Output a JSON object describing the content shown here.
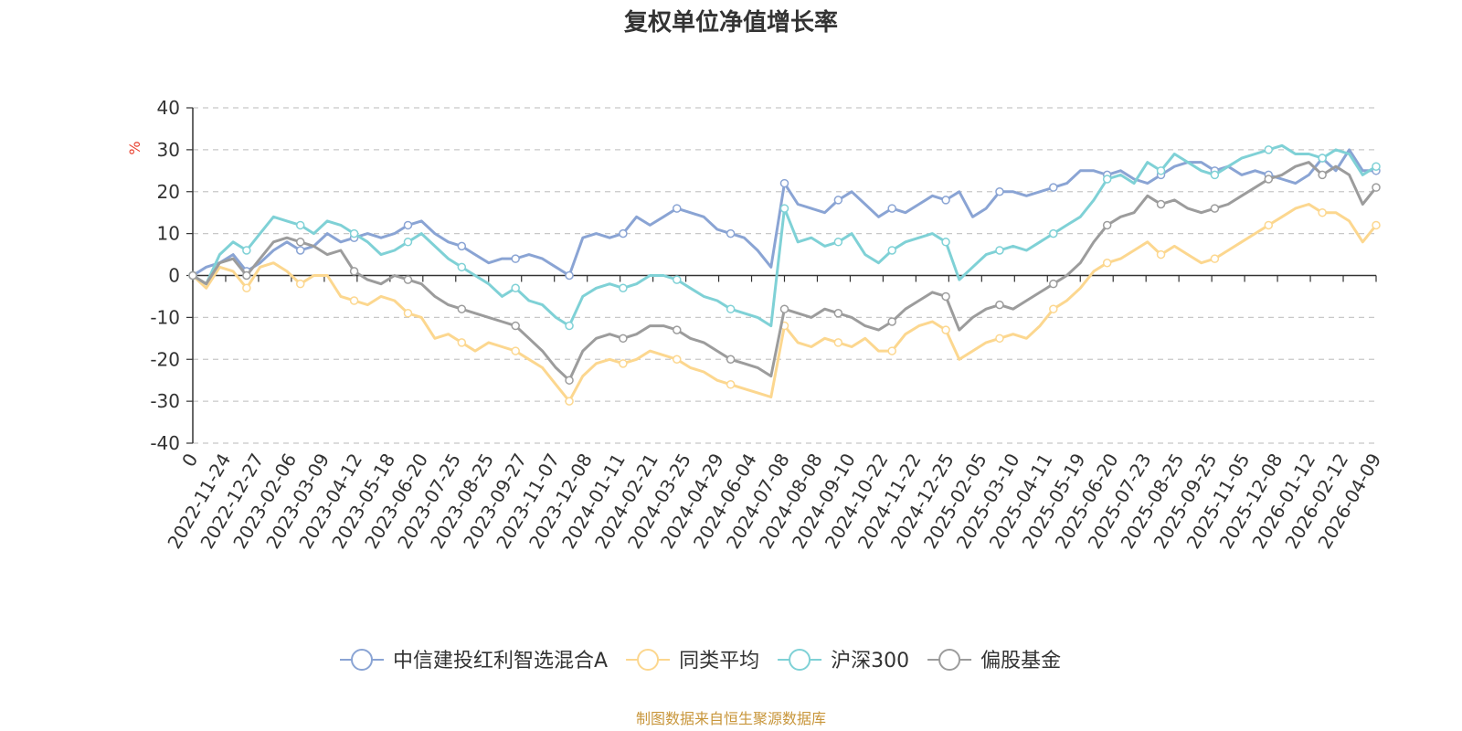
{
  "chart_data": {
    "type": "line",
    "title": "复权单位净值增长率",
    "ylabel": "%",
    "ylim": [
      -40,
      40
    ],
    "yticks": [
      -40,
      -30,
      -20,
      -10,
      0,
      10,
      20,
      30,
      40
    ],
    "grid": true,
    "legend_position": "bottom",
    "x_ticks": [
      "0",
      "2022-11-24",
      "2022-12-27",
      "2023-02-06",
      "2023-03-09",
      "2023-04-12",
      "2023-05-18",
      "2023-06-20",
      "2023-07-25",
      "2023-08-25",
      "2023-09-27",
      "2023-11-07",
      "2023-12-08",
      "2024-01-11",
      "2024-02-21",
      "2024-03-25",
      "2024-04-29",
      "2024-06-04",
      "2024-07-08",
      "2024-08-08",
      "2024-09-10",
      "2024-10-22",
      "2024-11-22",
      "2024-12-25",
      "2025-02-05",
      "2025-03-10",
      "2025-04-11",
      "2025-05-19",
      "2025-06-20",
      "2025-07-23",
      "2025-08-25",
      "2025-09-25",
      "2025-11-05",
      "2025-12-08",
      "2026-01-12",
      "2026-02-12",
      "2026-04-09"
    ],
    "series": [
      {
        "name": "中信建投红利智选混合A",
        "color": "#8aa4d4",
        "values": [
          0,
          2,
          3,
          5,
          1,
          3,
          6,
          8,
          6,
          7,
          10,
          8,
          9,
          10,
          9,
          10,
          12,
          13,
          10,
          8,
          7,
          5,
          3,
          4,
          4,
          5,
          4,
          2,
          0,
          9,
          10,
          9,
          10,
          14,
          12,
          14,
          16,
          15,
          14,
          11,
          10,
          9,
          6,
          2,
          22,
          17,
          16,
          15,
          18,
          20,
          17,
          14,
          16,
          15,
          17,
          19,
          18,
          20,
          14,
          16,
          20,
          20,
          19,
          20,
          21,
          22,
          25,
          25,
          24,
          25,
          23,
          22,
          24,
          26,
          27,
          27,
          25,
          26,
          24,
          25,
          24,
          23,
          22,
          24,
          28,
          25,
          30,
          25,
          25
        ]
      },
      {
        "name": "同类平均",
        "color": "#fcd78f",
        "values": [
          0,
          -3,
          2,
          1,
          -3,
          2,
          3,
          1,
          -2,
          0,
          0,
          -5,
          -6,
          -7,
          -5,
          -6,
          -9,
          -10,
          -15,
          -14,
          -16,
          -18,
          -16,
          -17,
          -18,
          -20,
          -22,
          -26,
          -30,
          -24,
          -21,
          -20,
          -21,
          -20,
          -18,
          -19,
          -20,
          -22,
          -23,
          -25,
          -26,
          -27,
          -28,
          -29,
          -12,
          -16,
          -17,
          -15,
          -16,
          -17,
          -15,
          -18,
          -18,
          -14,
          -12,
          -11,
          -13,
          -20,
          -18,
          -16,
          -15,
          -14,
          -15,
          -12,
          -8,
          -6,
          -3,
          1,
          3,
          4,
          6,
          8,
          5,
          7,
          5,
          3,
          4,
          6,
          8,
          10,
          12,
          14,
          16,
          17,
          15,
          15,
          13,
          8,
          12
        ]
      },
      {
        "name": "沪深300",
        "color": "#7fd1d6",
        "values": [
          0,
          -2,
          5,
          8,
          6,
          10,
          14,
          13,
          12,
          10,
          13,
          12,
          10,
          8,
          5,
          6,
          8,
          10,
          7,
          4,
          2,
          0,
          -2,
          -5,
          -3,
          -6,
          -7,
          -10,
          -12,
          -5,
          -3,
          -2,
          -3,
          -2,
          0,
          0,
          -1,
          -3,
          -5,
          -6,
          -8,
          -9,
          -10,
          -12,
          16,
          8,
          9,
          7,
          8,
          10,
          5,
          3,
          6,
          8,
          9,
          10,
          8,
          -1,
          2,
          5,
          6,
          7,
          6,
          8,
          10,
          12,
          14,
          18,
          23,
          24,
          22,
          27,
          25,
          29,
          27,
          25,
          24,
          26,
          28,
          29,
          30,
          31,
          29,
          29,
          28,
          30,
          29,
          24,
          26
        ]
      },
      {
        "name": "偏股基金",
        "color": "#9c9c9c",
        "values": [
          0,
          -2,
          3,
          4,
          0,
          4,
          8,
          9,
          8,
          7,
          5,
          6,
          1,
          -1,
          -2,
          0,
          -1,
          -2,
          -5,
          -7,
          -8,
          -9,
          -10,
          -11,
          -12,
          -15,
          -18,
          -22,
          -25,
          -18,
          -15,
          -14,
          -15,
          -14,
          -12,
          -12,
          -13,
          -15,
          -16,
          -18,
          -20,
          -21,
          -22,
          -24,
          -8,
          -9,
          -10,
          -8,
          -9,
          -10,
          -12,
          -13,
          -11,
          -8,
          -6,
          -4,
          -5,
          -13,
          -10,
          -8,
          -7,
          -8,
          -6,
          -4,
          -2,
          0,
          3,
          8,
          12,
          14,
          15,
          19,
          17,
          18,
          16,
          15,
          16,
          17,
          19,
          21,
          23,
          24,
          26,
          27,
          24,
          26,
          24,
          17,
          21
        ]
      }
    ]
  },
  "footer": {
    "source": "制图数据来自恒生聚源数据库"
  }
}
